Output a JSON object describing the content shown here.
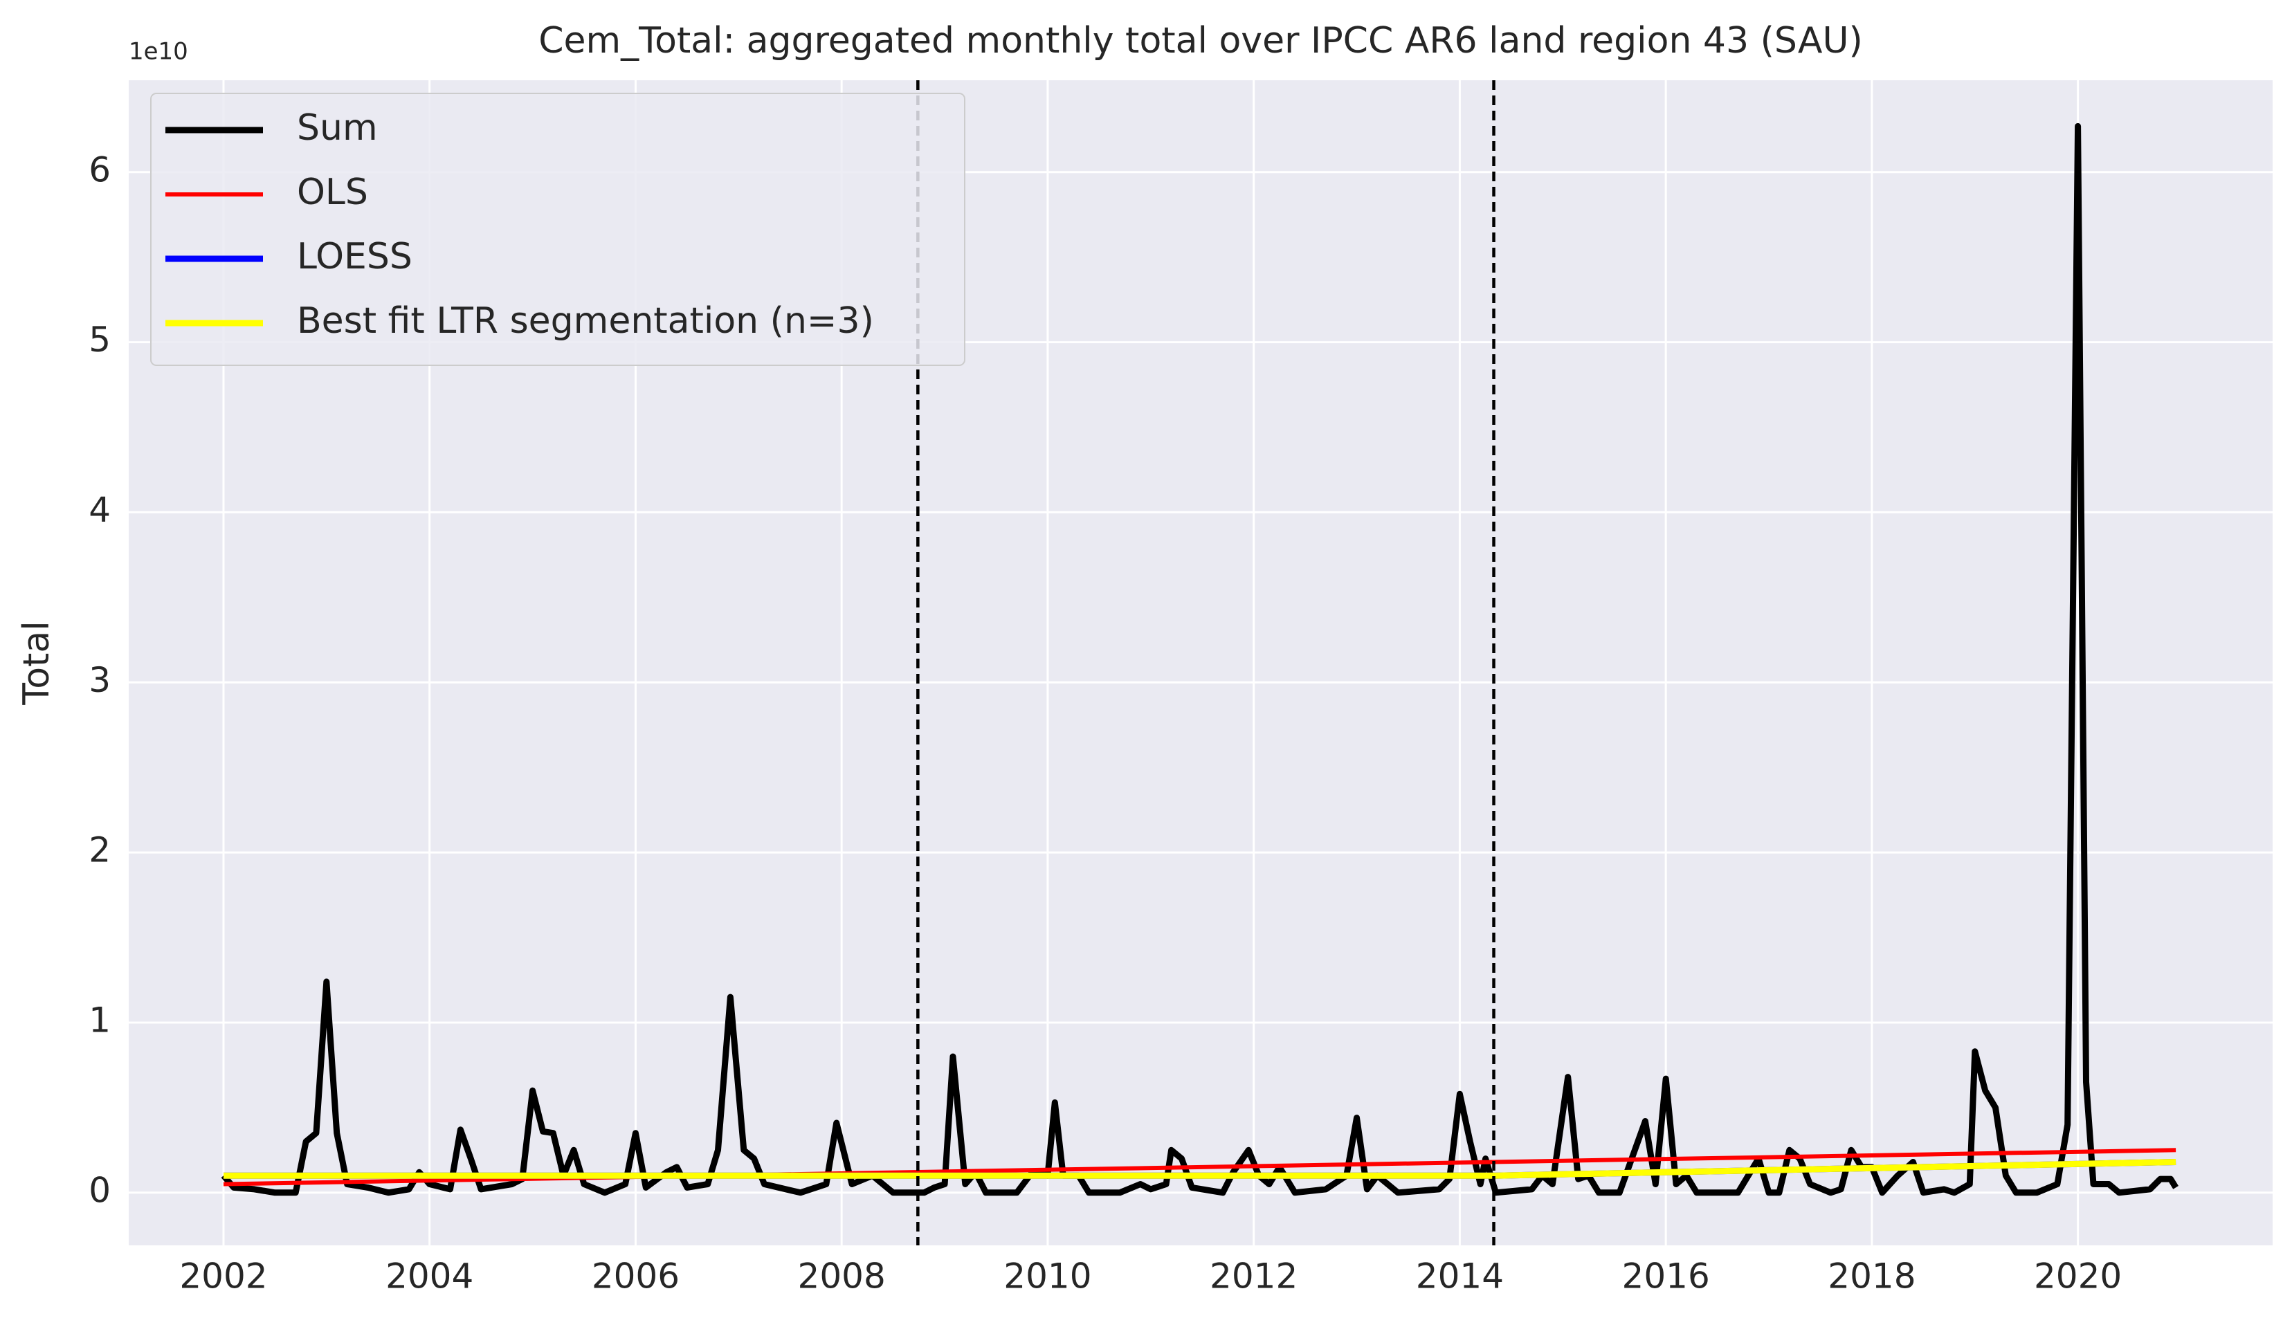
{
  "chart_data": {
    "type": "line",
    "title": "Cem_Total: aggregated monthly total over IPCC AR6 land region 43 (SAU)",
    "ylabel": "Total",
    "y_offset_label": "1e10",
    "xlim": [
      2001.08,
      2021.89
    ],
    "ylim": [
      -0.31,
      6.54
    ],
    "xticks": [
      2002,
      2004,
      2006,
      2008,
      2010,
      2012,
      2014,
      2016,
      2018,
      2020
    ],
    "yticks": [
      0,
      1,
      2,
      3,
      4,
      5,
      6
    ],
    "grid": true,
    "legend": "upper left",
    "breakpoints": [
      2008.74,
      2014.33
    ],
    "series": [
      {
        "name": "Sum",
        "color": "#000000",
        "x": [
          2002.0,
          2002.1,
          2002.3,
          2002.5,
          2002.7,
          2002.8,
          2002.9,
          2003.0,
          2003.1,
          2003.2,
          2003.4,
          2003.6,
          2003.8,
          2003.9,
          2004.0,
          2004.2,
          2004.3,
          2004.4,
          2004.5,
          2004.8,
          2004.9,
          2005.0,
          2005.1,
          2005.2,
          2005.3,
          2005.4,
          2005.5,
          2005.7,
          2005.9,
          2006.0,
          2006.1,
          2006.3,
          2006.4,
          2006.5,
          2006.7,
          2006.8,
          2006.92,
          2007.05,
          2007.15,
          2007.25,
          2007.6,
          2007.85,
          2007.95,
          2008.1,
          2008.3,
          2008.5,
          2008.8,
          2008.9,
          2009.0,
          2009.08,
          2009.2,
          2009.3,
          2009.4,
          2009.7,
          2009.85,
          2010.0,
          2010.07,
          2010.15,
          2010.3,
          2010.4,
          2010.7,
          2010.9,
          2011.0,
          2011.15,
          2011.2,
          2011.3,
          2011.4,
          2011.7,
          2011.8,
          2011.95,
          2012.05,
          2012.15,
          2012.25,
          2012.4,
          2012.7,
          2012.9,
          2013.0,
          2013.1,
          2013.2,
          2013.4,
          2013.8,
          2013.9,
          2014.0,
          2014.1,
          2014.2,
          2014.25,
          2014.35,
          2014.7,
          2014.8,
          2014.9,
          2015.05,
          2015.15,
          2015.25,
          2015.35,
          2015.55,
          2015.8,
          2015.9,
          2016.0,
          2016.1,
          2016.2,
          2016.3,
          2016.7,
          2016.9,
          2017.0,
          2017.1,
          2017.2,
          2017.3,
          2017.4,
          2017.6,
          2017.7,
          2017.8,
          2017.9,
          2018.0,
          2018.1,
          2018.25,
          2018.4,
          2018.5,
          2018.7,
          2018.8,
          2018.95,
          2019.0,
          2019.1,
          2019.2,
          2019.3,
          2019.4,
          2019.6,
          2019.8,
          2019.9,
          2020.0,
          2020.08,
          2020.15,
          2020.3,
          2020.4,
          2020.7,
          2020.8,
          2020.9,
          2020.95
        ],
        "values": [
          0.1,
          0.03,
          0.02,
          0.0,
          0.0,
          0.3,
          0.35,
          1.24,
          0.35,
          0.05,
          0.03,
          0.0,
          0.02,
          0.12,
          0.05,
          0.02,
          0.37,
          0.2,
          0.02,
          0.05,
          0.08,
          0.6,
          0.36,
          0.35,
          0.1,
          0.25,
          0.05,
          0.0,
          0.05,
          0.35,
          0.03,
          0.12,
          0.15,
          0.03,
          0.05,
          0.25,
          1.15,
          0.25,
          0.2,
          0.05,
          0.0,
          0.05,
          0.41,
          0.05,
          0.1,
          0.0,
          0.0,
          0.03,
          0.05,
          0.8,
          0.05,
          0.12,
          0.0,
          0.0,
          0.12,
          0.1,
          0.53,
          0.1,
          0.1,
          0.0,
          0.0,
          0.05,
          0.02,
          0.05,
          0.25,
          0.2,
          0.03,
          0.0,
          0.12,
          0.25,
          0.1,
          0.05,
          0.15,
          0.0,
          0.02,
          0.1,
          0.44,
          0.02,
          0.1,
          0.0,
          0.02,
          0.08,
          0.58,
          0.3,
          0.05,
          0.2,
          0.0,
          0.02,
          0.1,
          0.05,
          0.68,
          0.08,
          0.1,
          0.0,
          0.0,
          0.42,
          0.05,
          0.67,
          0.05,
          0.1,
          0.0,
          0.0,
          0.2,
          0.0,
          0.0,
          0.25,
          0.2,
          0.05,
          0.0,
          0.02,
          0.25,
          0.15,
          0.15,
          0.0,
          0.1,
          0.18,
          0.0,
          0.02,
          0.0,
          0.05,
          0.83,
          0.6,
          0.5,
          0.1,
          0.0,
          0.0,
          0.05,
          0.4,
          6.27,
          0.65,
          0.05,
          0.05,
          0.0,
          0.02,
          0.08,
          0.08,
          0.03
        ]
      },
      {
        "name": "OLS",
        "color": "#ff0000",
        "x": [
          2002.0,
          2020.95
        ],
        "values": [
          0.05,
          0.25
        ]
      },
      {
        "name": "LOESS",
        "color": "#0000ff",
        "x": [
          2002.0,
          2008.8,
          2014.35,
          2020.95
        ],
        "values": [
          0.1,
          0.1,
          0.1,
          0.18
        ]
      },
      {
        "name": "Best fit LTR segmentation (n=3)",
        "color": "#ffff00",
        "x": [
          2002.0,
          2008.8,
          2014.35,
          2020.95
        ],
        "values": [
          0.1,
          0.1,
          0.1,
          0.18
        ]
      }
    ]
  }
}
